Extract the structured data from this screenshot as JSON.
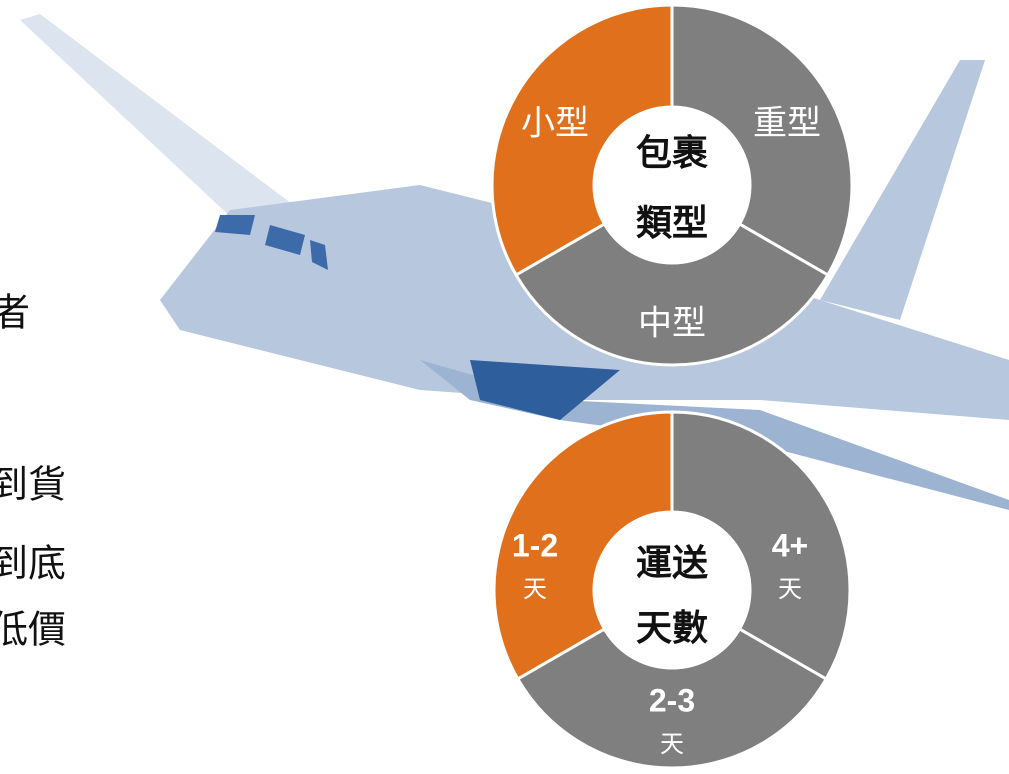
{
  "side_texts": [
    "者",
    "到貨",
    "到底",
    "低價"
  ],
  "donuts": [
    {
      "center": [
        "包裹",
        "類型"
      ],
      "segments": [
        "小型",
        "重型",
        "中型"
      ]
    },
    {
      "center": [
        "運送",
        "天數"
      ],
      "segments": [
        {
          "label": "1-2",
          "unit": "天"
        },
        {
          "label": "4+",
          "unit": "天"
        },
        {
          "label": "2-3",
          "unit": "天"
        }
      ]
    }
  ]
}
